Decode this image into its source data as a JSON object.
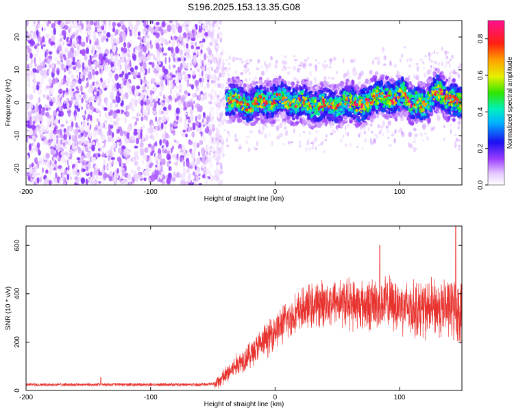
{
  "figure": {
    "title": "S196.2025.153.13.35.G08"
  },
  "chart_data": [
    {
      "type": "heatmap",
      "xlabel": "Height of straight line (km)",
      "ylabel": "Frequency (Hz)",
      "xlim": [
        -200,
        150
      ],
      "ylim": [
        -25,
        25
      ],
      "xticks": [
        -200,
        -100,
        0,
        100
      ],
      "xtick_labels": [
        "-200",
        "-100",
        "0",
        "100"
      ],
      "yticks": [
        -20,
        -10,
        0,
        10,
        20
      ],
      "ytick_labels": [
        "-20",
        "-10",
        "0",
        "10",
        "20"
      ],
      "colorbar": {
        "label": "Normalized spectral amplitude",
        "range": [
          0,
          0.9
        ],
        "ticks": [
          0.0,
          0.2,
          0.4,
          0.6,
          0.8
        ],
        "tick_labels": [
          "0.0",
          "0.2",
          "0.4",
          "0.6",
          "0.8"
        ],
        "colormap": "rainbow (white-purple-blue-cyan-green-yellow-orange-red-magenta)"
      },
      "regions": [
        {
          "x_range": [
            -200,
            -47
          ],
          "freq_range": [
            -25,
            25
          ],
          "pattern": "broadband noise",
          "amplitude_range": [
            0.0,
            0.15
          ]
        },
        {
          "x_range": [
            -47,
            150
          ],
          "pattern": "narrow signal band",
          "centerline": [
            [
              -55,
              4
            ],
            [
              -40,
              1
            ],
            [
              -20,
              -0.5
            ],
            [
              0,
              1
            ],
            [
              20,
              0
            ],
            [
              40,
              -1
            ],
            [
              60,
              0
            ],
            [
              75,
              -0.5
            ],
            [
              85,
              3
            ],
            [
              95,
              0
            ],
            [
              103,
              4
            ],
            [
              110,
              -1
            ],
            [
              120,
              0
            ],
            [
              130,
              3
            ],
            [
              140,
              2
            ],
            [
              150,
              -1
            ]
          ],
          "band_halfwidth_hz": [
            3,
            6
          ],
          "amplitude_range": [
            0.2,
            0.9
          ]
        }
      ],
      "grid": false,
      "legend": "colorbar right"
    },
    {
      "type": "line",
      "xlabel": "Height of straight line (km)",
      "ylabel": "SNR (10 * v/v)",
      "xlim": [
        -200,
        150
      ],
      "ylim": [
        0,
        680
      ],
      "xticks": [
        -200,
        -100,
        0,
        100
      ],
      "xtick_labels": [
        "-200",
        "-100",
        "0",
        "100"
      ],
      "yticks": [
        0,
        200,
        400,
        600
      ],
      "ytick_labels": [
        "0",
        "200",
        "400",
        "600"
      ],
      "color": "#e8322e",
      "grid": false,
      "series": [
        {
          "baseline": {
            "x": [
              -200,
              -150,
              -100,
              -60,
              -48,
              -40,
              -30,
              -20,
              -10,
              0,
              10,
              20,
              30,
              40,
              50,
              60,
              70,
              80,
              90,
              100,
              110,
              120,
              130,
              140,
              150
            ],
            "y": [
              22,
              22,
              22,
              22,
              25,
              60,
              110,
              150,
              195,
              250,
              290,
              330,
              350,
              362,
              370,
              360,
              352,
              358,
              360,
              355,
              340,
              335,
              340,
              345,
              320
            ]
          },
          "noise_amplitude": {
            "x": [
              -200,
              -50,
              -45,
              0,
              50,
              150
            ],
            "y": [
              12,
              12,
              40,
              90,
              120,
              150
            ]
          },
          "annotations_peaks": [
            {
              "x": -140,
              "y": 55
            },
            {
              "x": 84,
              "y": 600
            },
            {
              "x": 145,
              "y": 680
            }
          ]
        }
      ]
    }
  ]
}
